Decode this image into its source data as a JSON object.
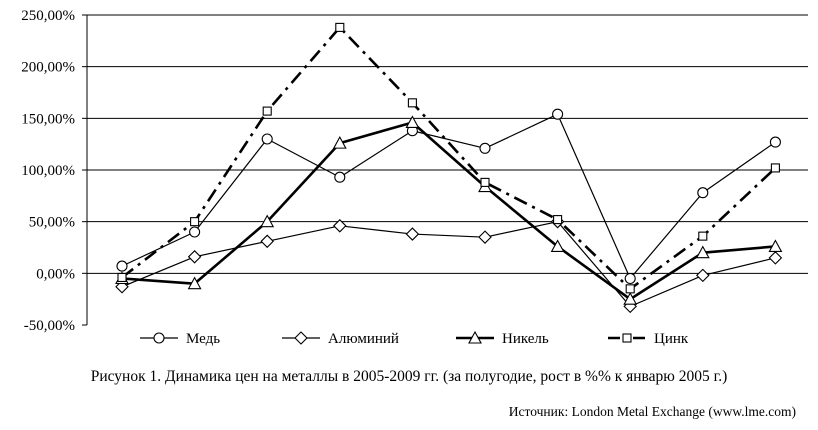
{
  "chart_data": {
    "type": "line",
    "x": [
      "1",
      "2",
      "3",
      "4",
      "5",
      "6",
      "7",
      "8",
      "9",
      "10"
    ],
    "ylim": [
      -50,
      250
    ],
    "yticks": [
      250,
      200,
      150,
      100,
      50,
      0,
      -50
    ],
    "ytick_labels": [
      "250,00%",
      "200,00%",
      "150,00%",
      "100,00%",
      "50,00%",
      "0,00%",
      "-50,00%"
    ],
    "grid": true,
    "legend_position": "bottom",
    "series": [
      {
        "name": "Медь",
        "marker": "circle",
        "style": "thin-solid",
        "values": [
          7,
          40,
          130,
          93,
          138,
          121,
          154,
          -5,
          78,
          127
        ]
      },
      {
        "name": "Алюминий",
        "marker": "diamond",
        "style": "thin-solid",
        "values": [
          -13,
          16,
          31,
          46,
          38,
          35,
          50,
          -32,
          -2,
          15
        ]
      },
      {
        "name": "Никель",
        "marker": "triangle",
        "style": "thick-solid",
        "values": [
          -5,
          -10,
          50,
          126,
          146,
          84,
          26,
          -25,
          20,
          26
        ]
      },
      {
        "name": "Цинк",
        "marker": "square",
        "style": "thick-dashdot",
        "values": [
          -4,
          50,
          157,
          238,
          165,
          88,
          52,
          -15,
          36,
          102
        ]
      }
    ]
  },
  "caption": "Рисунок 1. Динамика цен на металлы в 2005-2009 гг. (за полугодие, рост в %% к январю 2005 г.)",
  "source": "Источник: London Metal Exchange (www.lme.com)"
}
